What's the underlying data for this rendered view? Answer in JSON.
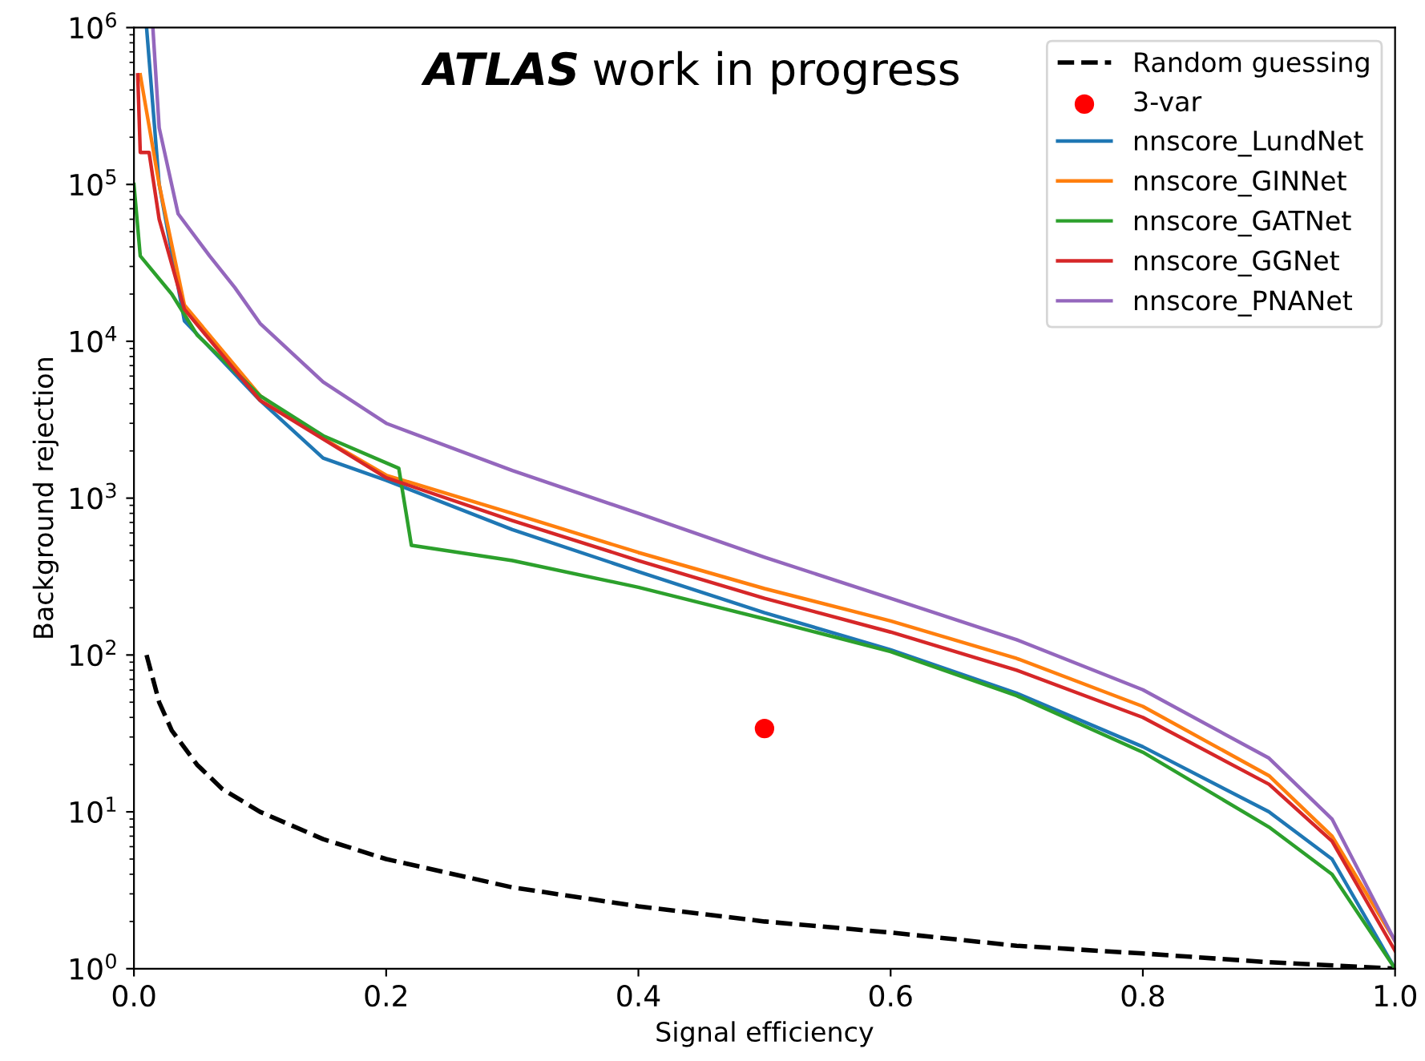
{
  "chart_data": {
    "type": "line",
    "xlabel": "Signal efficiency",
    "ylabel": "Background rejection",
    "annotations": [
      "ATLAS",
      "work in progress"
    ],
    "log": "y",
    "grid": false,
    "legend": "top right",
    "xlim": [
      0,
      1
    ],
    "ylim": [
      1,
      1000000
    ],
    "xticks": [
      {
        "value": 0,
        "label": "0.0"
      },
      {
        "value": 0.2,
        "label": "0.2"
      },
      {
        "value": 0.4,
        "label": "0.4"
      },
      {
        "value": 0.6,
        "label": "0.6"
      },
      {
        "value": 0.8,
        "label": "0.8"
      },
      {
        "value": 1,
        "label": "1.0"
      }
    ],
    "yticks": [
      {
        "value": 1,
        "label": "10$^{0}$"
      },
      {
        "value": 10,
        "label": "10$^{1}$"
      },
      {
        "value": 100,
        "label": "10$^{2}$"
      },
      {
        "value": 1000,
        "label": "10$^{3}$"
      },
      {
        "value": 10000,
        "label": "10$^{4}$"
      },
      {
        "value": 100000,
        "label": "10$^{5}$"
      },
      {
        "value": 1000000,
        "label": "10$^{6}$"
      }
    ],
    "series": [
      {
        "name": "Random guessing",
        "type": "line",
        "line_style": "dashed",
        "color": "#000000",
        "x": [
          0.01,
          0.02,
          0.03,
          0.05,
          0.07,
          0.1,
          0.15,
          0.2,
          0.3,
          0.4,
          0.5,
          0.6,
          0.7,
          0.8,
          0.9,
          1.0
        ],
        "values": [
          100,
          50,
          33,
          20,
          14,
          10,
          6.7,
          5,
          3.3,
          2.5,
          2,
          1.7,
          1.4,
          1.25,
          1.1,
          1
        ]
      },
      {
        "name": "3-var",
        "type": "scatter",
        "marker": "circle",
        "color": "#ff0000",
        "x": [
          0.5
        ],
        "values": [
          34
        ]
      },
      {
        "name": "nnscore_LundNet",
        "color": "#1f77b4",
        "x": [
          0.01,
          0.02,
          0.04,
          0.1,
          0.15,
          0.2,
          0.3,
          0.4,
          0.5,
          0.6,
          0.7,
          0.8,
          0.9,
          0.95,
          1.0
        ],
        "values": [
          1000000,
          100000,
          13500,
          4200,
          1800,
          1300,
          630,
          340,
          186,
          108,
          57,
          26,
          10,
          5,
          1
        ]
      },
      {
        "name": "nnscore_GINNet",
        "color": "#ff7f0e",
        "x": [
          0.005,
          0.02,
          0.04,
          0.1,
          0.15,
          0.2,
          0.3,
          0.4,
          0.5,
          0.6,
          0.7,
          0.8,
          0.9,
          0.95,
          1.0
        ],
        "values": [
          500000,
          100000,
          17000,
          4500,
          2400,
          1400,
          800,
          450,
          265,
          165,
          95,
          47,
          17,
          7,
          1.5
        ]
      },
      {
        "name": "nnscore_GATNet",
        "color": "#2ca02c",
        "x": [
          0,
          0.005,
          0.03,
          0.05,
          0.1,
          0.15,
          0.21,
          0.22,
          0.3,
          0.4,
          0.5,
          0.6,
          0.7,
          0.8,
          0.9,
          0.95,
          1.0
        ],
        "values": [
          100000,
          35000,
          20000,
          11000,
          4500,
          2500,
          1550,
          500,
          400,
          270,
          170,
          105,
          55,
          24,
          8,
          4,
          1
        ]
      },
      {
        "name": "nnscore_GGNet",
        "color": "#d62728",
        "x": [
          0.003,
          0.005,
          0.012,
          0.02,
          0.04,
          0.1,
          0.2,
          0.3,
          0.4,
          0.5,
          0.6,
          0.7,
          0.8,
          0.9,
          0.95,
          1.0
        ],
        "values": [
          500000,
          160000,
          160000,
          60000,
          16000,
          4200,
          1350,
          720,
          400,
          230,
          140,
          80,
          40,
          15,
          6.5,
          1.3
        ]
      },
      {
        "name": "nnscore_PNANet",
        "color": "#9467bd",
        "x": [
          0.015,
          0.02,
          0.035,
          0.06,
          0.08,
          0.1,
          0.15,
          0.2,
          0.3,
          0.4,
          0.5,
          0.6,
          0.7,
          0.8,
          0.9,
          0.95,
          1.0
        ],
        "values": [
          1000000,
          230000,
          65000,
          35000,
          22000,
          13000,
          5500,
          3000,
          1500,
          800,
          420,
          230,
          125,
          60,
          22,
          9,
          1.5
        ]
      }
    ]
  }
}
